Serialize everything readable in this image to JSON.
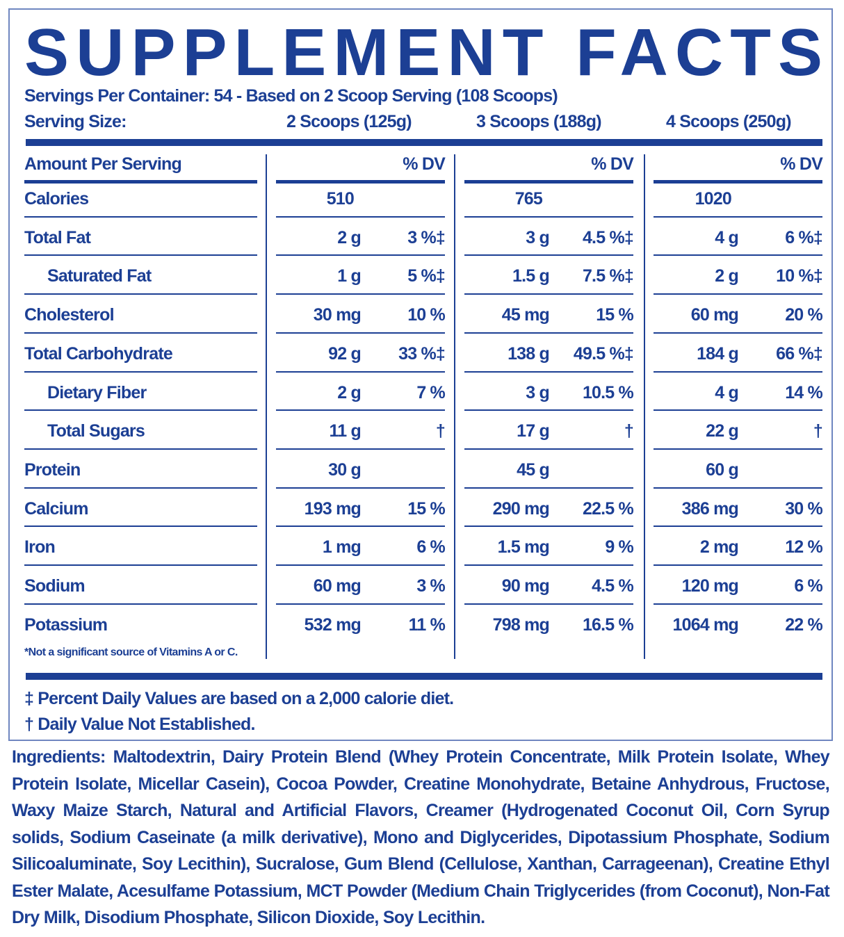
{
  "header": {
    "title": "SUPPLEMENT FACTS",
    "servings_per_container": "Servings Per Container: 54 - Based on 2 Scoop Serving (108 Scoops)",
    "serving_size_label": "Serving Size:"
  },
  "table": {
    "header_label": "Amount Per Serving",
    "columns": [
      {
        "serving_size": "2 Scoops (125g)",
        "dv_header": "% DV"
      },
      {
        "serving_size": "3 Scoops (188g)",
        "dv_header": "% DV"
      },
      {
        "serving_size": "4 Scoops (250g)",
        "dv_header": "% DV"
      }
    ],
    "rows": [
      {
        "label": "Calories",
        "indent": false,
        "cells": [
          [
            "510"
          ],
          [
            "765"
          ],
          [
            "1020"
          ]
        ]
      },
      {
        "label": "Total Fat",
        "indent": false,
        "cells": [
          [
            "2 g",
            "3 %‡"
          ],
          [
            "3 g",
            "4.5 %‡"
          ],
          [
            "4 g",
            "6 %‡"
          ]
        ]
      },
      {
        "label": "Saturated Fat",
        "indent": true,
        "cells": [
          [
            "1 g",
            "5 %‡"
          ],
          [
            "1.5 g",
            "7.5 %‡"
          ],
          [
            "2 g",
            "10 %‡"
          ]
        ]
      },
      {
        "label": "Cholesterol",
        "indent": false,
        "cells": [
          [
            "30 mg",
            "10 %"
          ],
          [
            "45 mg",
            "15 %"
          ],
          [
            "60 mg",
            "20 %"
          ]
        ]
      },
      {
        "label": "Total Carbohydrate",
        "indent": false,
        "cells": [
          [
            "92 g",
            "33 %‡"
          ],
          [
            "138 g",
            "49.5 %‡"
          ],
          [
            "184 g",
            "66 %‡"
          ]
        ]
      },
      {
        "label": "Dietary Fiber",
        "indent": true,
        "cells": [
          [
            "2 g",
            "7 %"
          ],
          [
            "3 g",
            "10.5 %"
          ],
          [
            "4 g",
            "14 %"
          ]
        ]
      },
      {
        "label": "Total Sugars",
        "indent": true,
        "cells": [
          [
            "11 g",
            "†"
          ],
          [
            "17 g",
            "†"
          ],
          [
            "22 g",
            "†"
          ]
        ]
      },
      {
        "label": "Protein",
        "indent": false,
        "cells": [
          [
            "30 g"
          ],
          [
            "45 g"
          ],
          [
            "60 g"
          ]
        ]
      },
      {
        "label": "Calcium",
        "indent": false,
        "cells": [
          [
            "193 mg",
            "15 %"
          ],
          [
            "290 mg",
            "22.5 %"
          ],
          [
            "386 mg",
            "30 %"
          ]
        ]
      },
      {
        "label": "Iron",
        "indent": false,
        "cells": [
          [
            "1 mg",
            "6 %"
          ],
          [
            "1.5 mg",
            "9 %"
          ],
          [
            "2 mg",
            "12 %"
          ]
        ]
      },
      {
        "label": "Sodium",
        "indent": false,
        "cells": [
          [
            "60 mg",
            "3 %"
          ],
          [
            "90 mg",
            "4.5 %"
          ],
          [
            "120 mg",
            "6 %"
          ]
        ]
      },
      {
        "label": "Potassium",
        "indent": false,
        "cells": [
          [
            "532 mg",
            "11 %"
          ],
          [
            "798 mg",
            "16.5 %"
          ],
          [
            "1064 mg",
            "22 %"
          ]
        ]
      }
    ],
    "note": "*Not a significant source of Vitamins A or C."
  },
  "footnotes": [
    "‡ Percent Daily Values are based on a 2,000 calorie diet.",
    "† Daily Value Not Established."
  ],
  "ingredients": {
    "label": "Ingredients:",
    "text": "Maltodextrin, Dairy Protein Blend (Whey Protein Concentrate, Milk Protein Isolate, Whey Protein Isolate, Micellar Casein), Cocoa Powder, Creatine Monohydrate, Betaine Anhydrous, Fructose, Waxy Maize Starch, Natural and Artificial Flavors, Creamer (Hydrogenated Coconut Oil, Corn Syrup solids, Sodium Caseinate (a milk derivative), Mono and Diglycerides, Dipotassium Phosphate, Sodium Silicoaluminate, Soy Lecithin), Sucralose, Gum Blend (Cellulose, Xanthan, Carrageenan), Creatine Ethyl Ester Malate, Acesulfame Potassium, MCT Powder (Medium Chain Triglycerides (from Coconut), Non-Fat Dry Milk, Disodium Phosphate, Silicon Dioxide, Soy Lecithin."
  }
}
